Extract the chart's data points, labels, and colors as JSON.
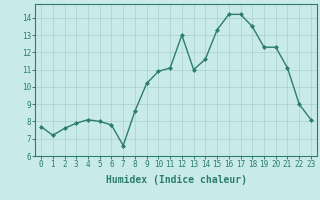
{
  "x": [
    0,
    1,
    2,
    3,
    4,
    5,
    6,
    7,
    8,
    9,
    10,
    11,
    12,
    13,
    14,
    15,
    16,
    17,
    18,
    19,
    20,
    21,
    22,
    23
  ],
  "y": [
    7.7,
    7.2,
    7.6,
    7.9,
    8.1,
    8.0,
    7.8,
    6.6,
    8.6,
    10.2,
    10.9,
    11.1,
    13.0,
    11.0,
    11.6,
    13.3,
    14.2,
    14.2,
    13.5,
    12.3,
    12.3,
    11.1,
    9.0,
    8.1
  ],
  "line_color": "#2d7d6e",
  "marker": "D",
  "marker_size": 2.0,
  "linewidth": 1.0,
  "bg_color": "#c8eae8",
  "grid_color": "#aacfcc",
  "xlabel": "Humidex (Indice chaleur)",
  "xlim": [
    -0.5,
    23.5
  ],
  "ylim": [
    6,
    14.8
  ],
  "yticks": [
    6,
    7,
    8,
    9,
    10,
    11,
    12,
    13,
    14
  ],
  "xticks": [
    0,
    1,
    2,
    3,
    4,
    5,
    6,
    7,
    8,
    9,
    10,
    11,
    12,
    13,
    14,
    15,
    16,
    17,
    18,
    19,
    20,
    21,
    22,
    23
  ],
  "tick_fontsize": 5.5,
  "xlabel_fontsize": 7.0,
  "tick_color": "#2d7d6e",
  "axis_color": "#2d7d6e"
}
